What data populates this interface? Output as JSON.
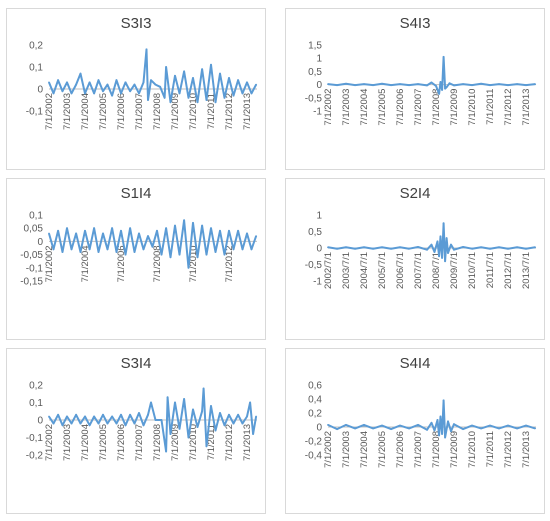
{
  "colors": {
    "series": "#5b9bd5",
    "axis_text": "#595959",
    "zero_line": "#bfbfbf",
    "border": "#d9d9d9"
  },
  "chart_data": [
    {
      "type": "line",
      "title": "S3I3",
      "ylim": [
        -0.1,
        0.2
      ],
      "yticks": [
        -0.1,
        0,
        0.1,
        0.2
      ],
      "ytick_labels": [
        "-0,1",
        "0",
        "0,1",
        "0,2"
      ],
      "x_range": [
        "2002-07-01",
        "2014-01-20"
      ],
      "xtick_labels": [
        "7/1/2002",
        "7/1/2003",
        "7/1/2004",
        "7/1/2005",
        "7/1/2006",
        "7/1/2007",
        "7/1/2008",
        "7/1/2009",
        "7/1/2010",
        "7/1/2011",
        "7/1/2012",
        "7/1/2013"
      ],
      "series": [
        {
          "x": [
            "2002-07-01",
            "2002-10-01",
            "2003-01-01",
            "2003-04-01",
            "2003-07-01",
            "2003-10-01",
            "2004-01-01",
            "2004-04-01",
            "2004-07-01",
            "2004-10-01",
            "2005-01-01",
            "2005-04-01",
            "2005-07-01",
            "2005-10-01",
            "2006-01-01",
            "2006-04-01",
            "2006-07-01",
            "2006-10-01",
            "2007-01-01",
            "2007-04-01",
            "2007-07-01",
            "2007-10-01",
            "2007-12-01",
            "2008-01-01",
            "2008-03-01",
            "2008-06-01",
            "2008-09-01",
            "2008-12-01",
            "2009-01-01",
            "2009-04-01",
            "2009-07-01",
            "2009-10-01",
            "2010-01-01",
            "2010-04-01",
            "2010-07-01",
            "2010-10-01",
            "2011-01-01",
            "2011-04-01",
            "2011-07-01",
            "2011-10-01",
            "2012-01-01",
            "2012-04-01",
            "2012-07-01",
            "2012-10-01",
            "2013-01-01",
            "2013-04-01",
            "2013-07-01",
            "2013-10-01",
            "2014-01-01"
          ],
          "values": [
            0.03,
            -0.02,
            0.04,
            -0.01,
            0.03,
            -0.02,
            0.02,
            0.07,
            -0.02,
            0.03,
            -0.02,
            0.04,
            -0.01,
            0.02,
            -0.03,
            0.04,
            -0.02,
            0.03,
            -0.01,
            0.02,
            -0.02,
            0.03,
            0.18,
            -0.05,
            0.04,
            0.02,
            0.01,
            -0.04,
            0.1,
            -0.06,
            0.06,
            -0.02,
            0.08,
            -0.04,
            0.05,
            -0.06,
            0.09,
            -0.05,
            0.11,
            -0.06,
            0.07,
            -0.04,
            0.05,
            -0.03,
            0.04,
            -0.02,
            0.03,
            -0.02,
            0.02
          ]
        }
      ]
    },
    {
      "type": "line",
      "title": "S4I3",
      "ylim": [
        -1,
        1.5
      ],
      "yticks": [
        -1,
        -0.5,
        0,
        0.5,
        1,
        1.5
      ],
      "ytick_labels": [
        "-1",
        "-0,5",
        "0",
        "0,5",
        "1",
        "1,5"
      ],
      "x_range": [
        "2002-07-01",
        "2014-01-20"
      ],
      "xtick_labels": [
        "7/1/2002",
        "7/1/2003",
        "7/1/2004",
        "7/1/2005",
        "7/1/2006",
        "7/1/2007",
        "7/1/2008",
        "7/1/2009",
        "7/1/2010",
        "7/1/2011",
        "7/1/2012",
        "7/1/2013"
      ],
      "series": [
        {
          "x": [
            "2002-07-01",
            "2003-01-01",
            "2003-07-01",
            "2004-01-01",
            "2004-07-01",
            "2005-01-01",
            "2005-07-01",
            "2006-01-01",
            "2006-07-01",
            "2007-01-01",
            "2007-07-01",
            "2008-01-01",
            "2008-04-01",
            "2008-07-01",
            "2008-09-01",
            "2008-10-01",
            "2008-11-01",
            "2008-12-01",
            "2009-01-01",
            "2009-02-01",
            "2009-04-01",
            "2009-07-01",
            "2010-01-01",
            "2010-07-01",
            "2011-01-01",
            "2011-07-01",
            "2012-01-01",
            "2012-07-01",
            "2013-01-01",
            "2013-07-01",
            "2014-01-01"
          ],
          "values": [
            0.02,
            -0.02,
            0.03,
            -0.02,
            0.02,
            -0.02,
            0.03,
            -0.02,
            0.02,
            -0.02,
            0.02,
            -0.03,
            0.08,
            -0.05,
            -0.35,
            0.1,
            -0.2,
            1.05,
            -0.15,
            -0.1,
            0.05,
            -0.03,
            0.02,
            -0.02,
            0.03,
            -0.02,
            0.02,
            -0.02,
            0.02,
            -0.02,
            0.02
          ]
        }
      ]
    },
    {
      "type": "line",
      "title": "S1I4",
      "ylim": [
        -0.15,
        0.1
      ],
      "yticks": [
        -0.15,
        -0.1,
        -0.05,
        0,
        0.05,
        0.1
      ],
      "ytick_labels": [
        "-0,15",
        "-0,1",
        "-0,05",
        "0",
        "0,05",
        "0,1"
      ],
      "x_range": [
        "2002-07-01",
        "2014-01-20"
      ],
      "xtick_labels": [
        "7/1/2002",
        "7/1/2004",
        "7/1/2006",
        "7/1/2008",
        "7/1/2010",
        "7/1/2012"
      ],
      "series": [
        {
          "x": [
            "2002-07-01",
            "2002-10-01",
            "2003-01-01",
            "2003-04-01",
            "2003-07-01",
            "2003-10-01",
            "2004-01-01",
            "2004-04-01",
            "2004-07-01",
            "2004-10-01",
            "2005-01-01",
            "2005-04-01",
            "2005-07-01",
            "2005-10-01",
            "2006-01-01",
            "2006-04-01",
            "2006-07-01",
            "2006-10-01",
            "2007-01-01",
            "2007-04-01",
            "2007-07-01",
            "2007-10-01",
            "2008-01-01",
            "2008-04-01",
            "2008-07-01",
            "2008-10-01",
            "2009-01-01",
            "2009-04-01",
            "2009-07-01",
            "2009-10-01",
            "2010-01-01",
            "2010-04-01",
            "2010-07-01",
            "2010-10-01",
            "2011-01-01",
            "2011-04-01",
            "2011-07-01",
            "2011-10-01",
            "2012-01-01",
            "2012-04-01",
            "2012-07-01",
            "2012-10-01",
            "2013-01-01",
            "2013-04-01",
            "2013-07-01",
            "2013-10-01",
            "2014-01-01"
          ],
          "values": [
            0.03,
            -0.03,
            0.04,
            -0.04,
            0.05,
            -0.03,
            0.03,
            -0.04,
            0.04,
            -0.03,
            0.05,
            -0.04,
            0.03,
            -0.03,
            0.05,
            -0.04,
            0.04,
            -0.05,
            0.05,
            -0.04,
            0.03,
            -0.03,
            0.02,
            -0.02,
            0.04,
            -0.05,
            0.05,
            -0.06,
            0.06,
            -0.05,
            0.08,
            -0.1,
            0.07,
            -0.06,
            0.06,
            -0.05,
            0.05,
            -0.04,
            0.04,
            -0.05,
            0.04,
            -0.03,
            0.04,
            -0.03,
            0.03,
            -0.03,
            0.02
          ]
        }
      ]
    },
    {
      "type": "line",
      "title": "S2I4",
      "ylim": [
        -1,
        1
      ],
      "yticks": [
        -1,
        -0.5,
        0,
        0.5,
        1
      ],
      "ytick_labels": [
        "-1",
        "-0,5",
        "0",
        "0,5",
        "1"
      ],
      "x_range": [
        "2002-07-01",
        "2014-01-20"
      ],
      "xtick_labels": [
        "2002/7/1",
        "2003/7/1",
        "2004/7/1",
        "2005/7/1",
        "2006/7/1",
        "2007/7/1",
        "2008/7/1",
        "2009/7/1",
        "2010/7/1",
        "2011/7/1",
        "2012/7/1",
        "2013/7/1"
      ],
      "series": [
        {
          "x": [
            "2002-07-01",
            "2003-01-01",
            "2003-07-01",
            "2004-01-01",
            "2004-07-01",
            "2005-01-01",
            "2005-07-01",
            "2006-01-01",
            "2006-07-01",
            "2007-01-01",
            "2007-07-01",
            "2008-01-01",
            "2008-04-01",
            "2008-06-01",
            "2008-08-01",
            "2008-09-01",
            "2008-10-01",
            "2008-11-01",
            "2008-12-01",
            "2009-01-01",
            "2009-02-01",
            "2009-03-01",
            "2009-05-01",
            "2009-07-01",
            "2010-01-01",
            "2010-07-01",
            "2011-01-01",
            "2011-07-01",
            "2012-01-01",
            "2012-07-01",
            "2013-01-01",
            "2013-07-01",
            "2014-01-01"
          ],
          "values": [
            0.02,
            -0.02,
            0.02,
            -0.02,
            0.02,
            -0.02,
            0.02,
            -0.02,
            0.02,
            -0.02,
            0.03,
            -0.05,
            0.1,
            -0.12,
            0.2,
            -0.25,
            0.35,
            -0.3,
            0.75,
            -0.4,
            0.3,
            -0.15,
            0.1,
            -0.05,
            0.03,
            -0.02,
            0.02,
            -0.02,
            0.02,
            -0.02,
            0.02,
            -0.02,
            0.02
          ]
        }
      ]
    },
    {
      "type": "line",
      "title": "S3I4",
      "ylim": [
        -0.2,
        0.2
      ],
      "yticks": [
        -0.2,
        -0.1,
        0,
        0.1,
        0.2
      ],
      "ytick_labels": [
        "-0,2",
        "-0,1",
        "0",
        "0,1",
        "0,2"
      ],
      "x_range": [
        "2002-07-01",
        "2014-01-20"
      ],
      "xtick_labels": [
        "7/1/2002",
        "7/1/2003",
        "7/1/2004",
        "7/1/2005",
        "7/1/2006",
        "7/1/2007",
        "7/1/2008",
        "7/1/2009",
        "7/1/2010",
        "7/1/2011",
        "7/1/2012",
        "7/1/2013"
      ],
      "series": [
        {
          "x": [
            "2002-07-01",
            "2002-10-01",
            "2003-01-01",
            "2003-04-01",
            "2003-07-01",
            "2003-10-01",
            "2004-01-01",
            "2004-04-01",
            "2004-07-01",
            "2004-10-01",
            "2005-01-01",
            "2005-04-01",
            "2005-07-01",
            "2005-10-01",
            "2006-01-01",
            "2006-04-01",
            "2006-07-01",
            "2006-10-01",
            "2007-01-01",
            "2007-04-01",
            "2007-07-01",
            "2007-10-01",
            "2008-01-01",
            "2008-03-01",
            "2008-06-01",
            "2008-10-01",
            "2009-01-01",
            "2009-02-01",
            "2009-04-01",
            "2009-07-01",
            "2009-10-01",
            "2010-01-01",
            "2010-04-01",
            "2010-07-01",
            "2010-10-01",
            "2011-01-01",
            "2011-02-01",
            "2011-04-01",
            "2011-07-01",
            "2011-10-01",
            "2012-01-01",
            "2012-04-01",
            "2012-07-01",
            "2012-10-01",
            "2013-01-01",
            "2013-04-01",
            "2013-07-01",
            "2013-09-01",
            "2013-11-01",
            "2014-01-01"
          ],
          "values": [
            0.02,
            -0.02,
            0.03,
            -0.03,
            0.02,
            -0.02,
            0.03,
            -0.02,
            0.02,
            -0.03,
            0.02,
            -0.02,
            0.03,
            -0.02,
            0.02,
            -0.02,
            0.03,
            -0.03,
            0.03,
            -0.02,
            0.04,
            -0.03,
            0.03,
            0.1,
            0.0,
            0.0,
            -0.18,
            0.13,
            -0.08,
            0.1,
            -0.05,
            0.12,
            -0.1,
            0.06,
            -0.04,
            0.05,
            0.18,
            -0.15,
            0.08,
            -0.06,
            0.04,
            -0.03,
            0.03,
            -0.02,
            0.03,
            -0.02,
            0.02,
            0.1,
            -0.08,
            0.02
          ]
        }
      ]
    },
    {
      "type": "line",
      "title": "S4I4",
      "ylim": [
        -0.4,
        0.6
      ],
      "yticks": [
        -0.4,
        -0.2,
        0,
        0.2,
        0.4,
        0.6
      ],
      "ytick_labels": [
        "-0,4",
        "-0,2",
        "0",
        "0,2",
        "0,4",
        "0,6"
      ],
      "x_range": [
        "2002-07-01",
        "2014-01-20"
      ],
      "xtick_labels": [
        "7/1/2002",
        "7/1/2003",
        "7/1/2004",
        "7/1/2005",
        "7/1/2006",
        "7/1/2007",
        "7/1/2008",
        "7/1/2009",
        "7/1/2010",
        "7/1/2011",
        "7/1/2012",
        "7/1/2013"
      ],
      "series": [
        {
          "x": [
            "2002-07-01",
            "2003-01-01",
            "2003-07-01",
            "2004-01-01",
            "2004-07-01",
            "2005-01-01",
            "2005-07-01",
            "2006-01-01",
            "2006-07-01",
            "2007-01-01",
            "2007-07-01",
            "2008-01-01",
            "2008-04-01",
            "2008-06-01",
            "2008-08-01",
            "2008-09-01",
            "2008-10-01",
            "2008-11-01",
            "2008-12-01",
            "2009-01-01",
            "2009-03-01",
            "2009-05-01",
            "2009-07-01",
            "2010-01-01",
            "2010-07-01",
            "2011-01-01",
            "2011-07-01",
            "2012-01-01",
            "2012-07-01",
            "2013-01-01",
            "2013-07-01",
            "2014-01-01"
          ],
          "values": [
            0.03,
            -0.03,
            0.03,
            -0.02,
            0.03,
            -0.02,
            0.02,
            -0.03,
            0.02,
            -0.02,
            0.03,
            -0.04,
            0.06,
            -0.05,
            0.1,
            -0.12,
            0.15,
            -0.1,
            0.38,
            -0.15,
            0.08,
            -0.06,
            0.04,
            -0.03,
            0.02,
            -0.02,
            0.02,
            -0.02,
            0.02,
            -0.02,
            0.02,
            -0.02
          ]
        }
      ]
    }
  ]
}
